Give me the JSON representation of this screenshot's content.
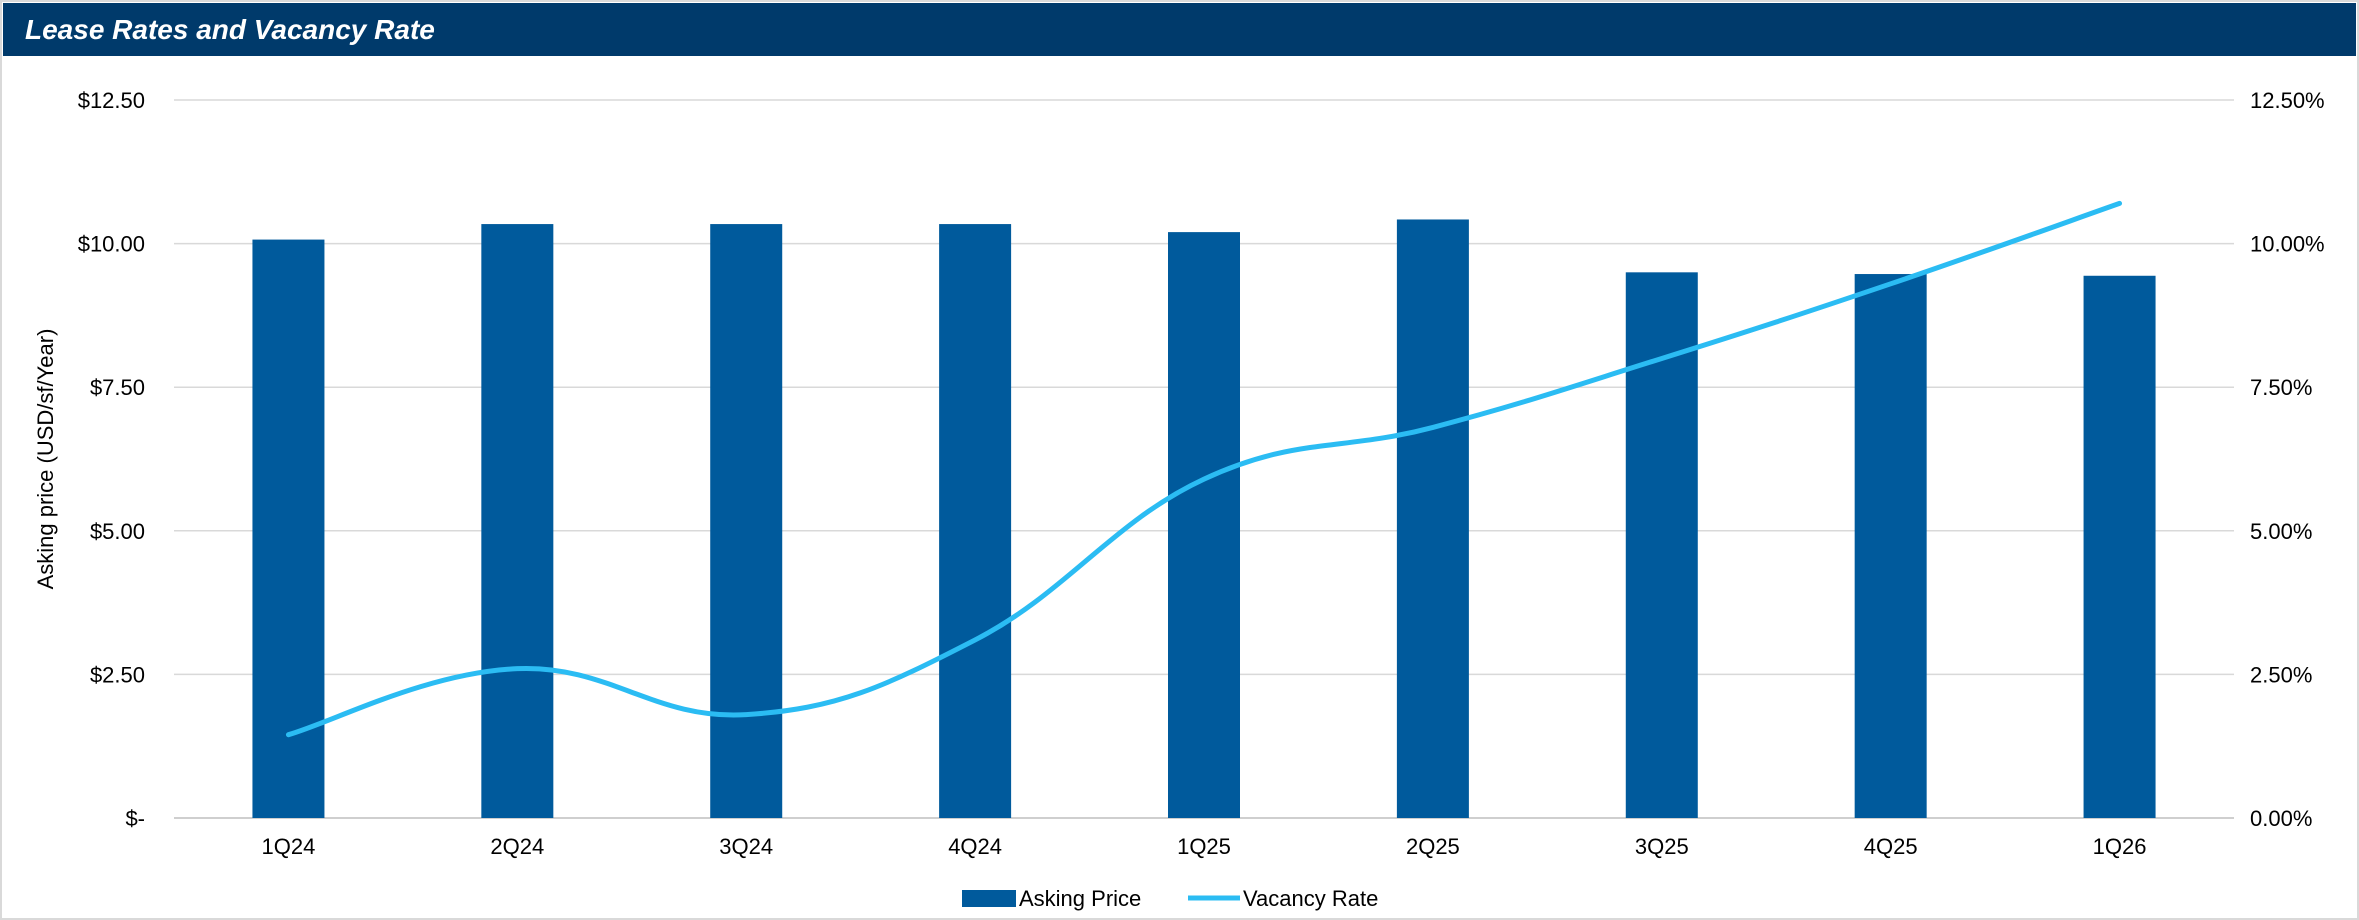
{
  "header": {
    "title": "Lease Rates and Vacancy Rate"
  },
  "colors": {
    "header_bg": "#003a6b",
    "bar": "#005a9c",
    "line": "#2bbcf3",
    "grid": "#d9d9d9"
  },
  "chart_data": {
    "type": "bar",
    "categories": [
      "1Q24",
      "2Q24",
      "3Q24",
      "4Q24",
      "1Q25",
      "2Q25",
      "3Q25",
      "4Q25",
      "1Q26"
    ],
    "series": [
      {
        "name": "Asking Price",
        "type": "bar",
        "axis": "left",
        "values": [
          10.07,
          10.34,
          10.34,
          10.34,
          10.2,
          10.42,
          9.5,
          9.47,
          9.44
        ]
      },
      {
        "name": "Vacancy Rate",
        "type": "line",
        "axis": "right",
        "smooth": true,
        "values": [
          1.45,
          2.6,
          1.8,
          3.1,
          5.9,
          6.8,
          8.0,
          9.3,
          10.7
        ]
      }
    ],
    "ylabel": "Asking price (USD/sf/Year)",
    "ylim": [
      0,
      12.5
    ],
    "y2lim": [
      0,
      12.5
    ],
    "yticks": [
      "$-",
      "$2.50",
      "$5.00",
      "$7.50",
      "$10.00",
      "$12.50"
    ],
    "y2ticks": [
      "0.00%",
      "2.50%",
      "5.00%",
      "7.50%",
      "10.00%",
      "12.50%"
    ],
    "grid": true,
    "legend": "bottom"
  }
}
